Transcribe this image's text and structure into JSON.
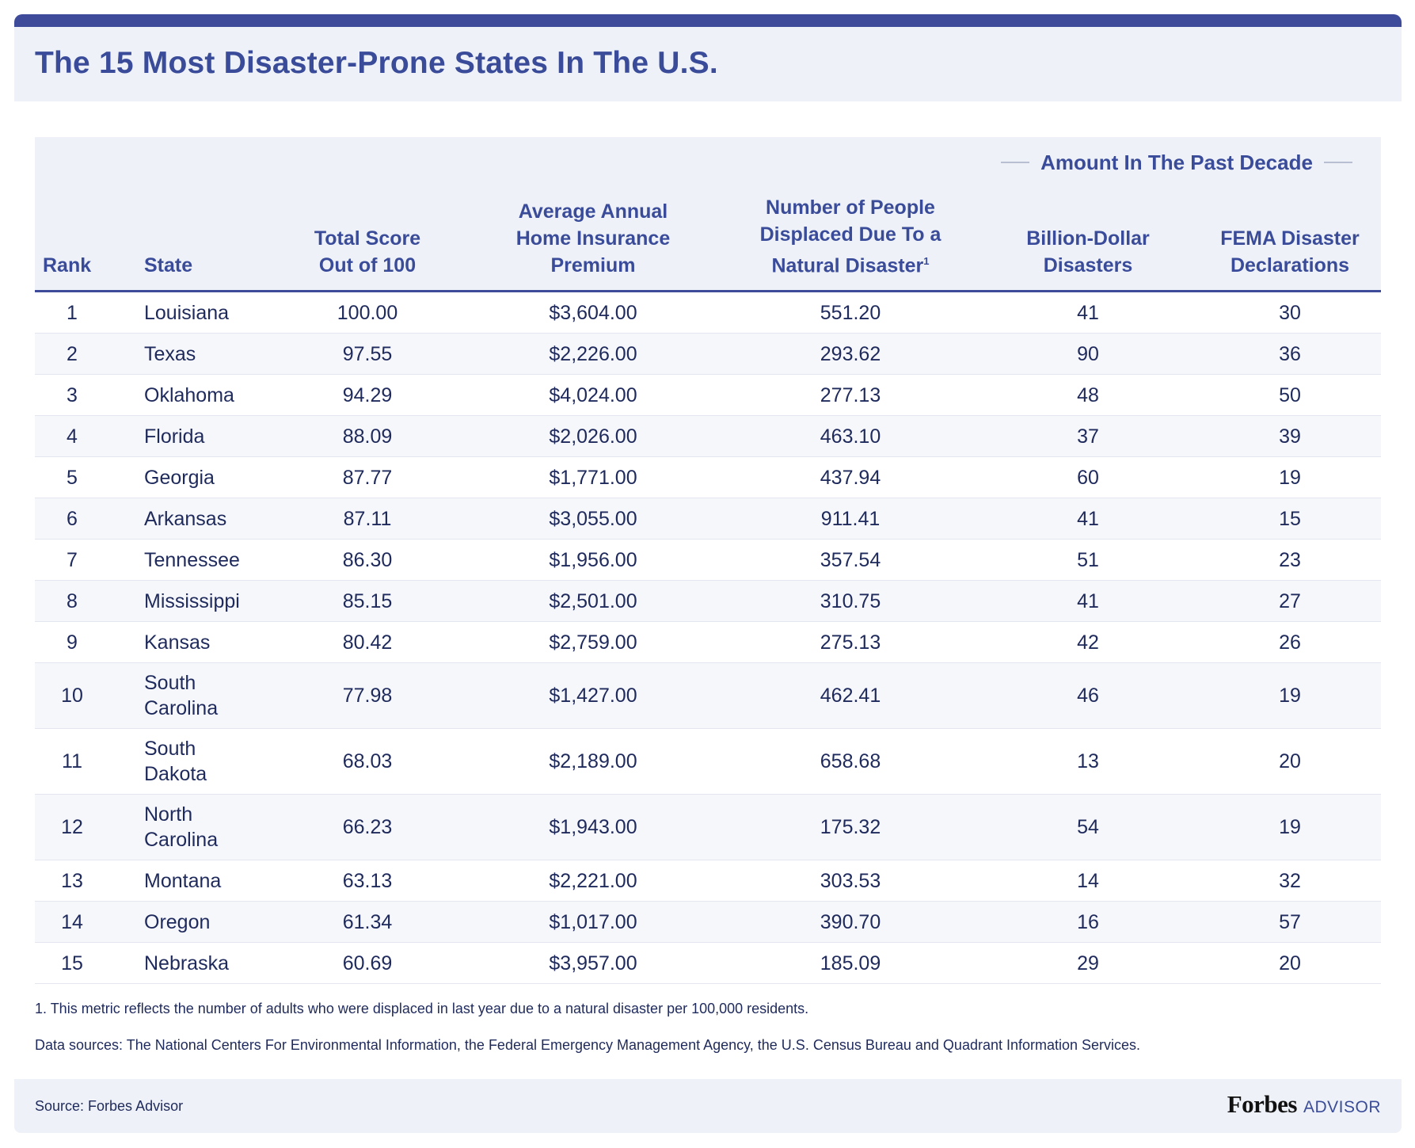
{
  "chart_data": {
    "type": "table",
    "title": "The 15 Most Disaster-Prone States In The U.S.",
    "group_header": "Amount In The Past Decade",
    "columns": [
      "Rank",
      "State",
      "Total Score Out of 100",
      "Average Annual Home Insurance Premium",
      "Number of People Displaced Due To a Natural Disaster",
      "Billion-Dollar Disasters",
      "FEMA Disaster Declarations"
    ],
    "header_lines": {
      "rank": [
        "Rank"
      ],
      "state": [
        "State"
      ],
      "score": [
        "Total Score",
        "Out of 100"
      ],
      "premium": [
        "Average Annual",
        "Home Insurance",
        "Premium"
      ],
      "displaced": [
        "Number of People",
        "Displaced Due To a",
        "Natural Disaster"
      ],
      "displaced_sup": "1",
      "billion": [
        "Billion-Dollar",
        "Disasters"
      ],
      "fema": [
        "FEMA Disaster",
        "Declarations"
      ]
    },
    "rows": [
      {
        "rank": "1",
        "state": [
          "Louisiana"
        ],
        "score": "100.00",
        "premium": "$3,604.00",
        "displaced": "551.20",
        "billion": "41",
        "fema": "30"
      },
      {
        "rank": "2",
        "state": [
          "Texas"
        ],
        "score": "97.55",
        "premium": "$2,226.00",
        "displaced": "293.62",
        "billion": "90",
        "fema": "36"
      },
      {
        "rank": "3",
        "state": [
          "Oklahoma"
        ],
        "score": "94.29",
        "premium": "$4,024.00",
        "displaced": "277.13",
        "billion": "48",
        "fema": "50"
      },
      {
        "rank": "4",
        "state": [
          "Florida"
        ],
        "score": "88.09",
        "premium": "$2,026.00",
        "displaced": "463.10",
        "billion": "37",
        "fema": "39"
      },
      {
        "rank": "5",
        "state": [
          "Georgia"
        ],
        "score": "87.77",
        "premium": "$1,771.00",
        "displaced": "437.94",
        "billion": "60",
        "fema": "19"
      },
      {
        "rank": "6",
        "state": [
          "Arkansas"
        ],
        "score": "87.11",
        "premium": "$3,055.00",
        "displaced": "911.41",
        "billion": "41",
        "fema": "15"
      },
      {
        "rank": "7",
        "state": [
          "Tennessee"
        ],
        "score": "86.30",
        "premium": "$1,956.00",
        "displaced": "357.54",
        "billion": "51",
        "fema": "23"
      },
      {
        "rank": "8",
        "state": [
          "Mississippi"
        ],
        "score": "85.15",
        "premium": "$2,501.00",
        "displaced": "310.75",
        "billion": "41",
        "fema": "27"
      },
      {
        "rank": "9",
        "state": [
          "Kansas"
        ],
        "score": "80.42",
        "premium": "$2,759.00",
        "displaced": "275.13",
        "billion": "42",
        "fema": "26"
      },
      {
        "rank": "10",
        "state": [
          "South",
          "Carolina"
        ],
        "score": "77.98",
        "premium": "$1,427.00",
        "displaced": "462.41",
        "billion": "46",
        "fema": "19"
      },
      {
        "rank": "11",
        "state": [
          "South",
          "Dakota"
        ],
        "score": "68.03",
        "premium": "$2,189.00",
        "displaced": "658.68",
        "billion": "13",
        "fema": "20"
      },
      {
        "rank": "12",
        "state": [
          "North",
          "Carolina"
        ],
        "score": "66.23",
        "premium": "$1,943.00",
        "displaced": "175.32",
        "billion": "54",
        "fema": "19"
      },
      {
        "rank": "13",
        "state": [
          "Montana"
        ],
        "score": "63.13",
        "premium": "$2,221.00",
        "displaced": "303.53",
        "billion": "14",
        "fema": "32"
      },
      {
        "rank": "14",
        "state": [
          "Oregon"
        ],
        "score": "61.34",
        "premium": "$1,017.00",
        "displaced": "390.70",
        "billion": "16",
        "fema": "57"
      },
      {
        "rank": "15",
        "state": [
          "Nebraska"
        ],
        "score": "60.69",
        "premium": "$3,957.00",
        "displaced": "185.09",
        "billion": "29",
        "fema": "20"
      }
    ]
  },
  "footnotes": {
    "note1": "1. This metric reflects the number of adults who were displaced in last year due to a natural disaster per 100,000 residents.",
    "sources": "Data sources: The National Centers For Environmental Information, the Federal Emergency Management Agency, the U.S. Census Bureau and Quadrant Information Services."
  },
  "footer": {
    "source": "Source: Forbes Advisor",
    "brand_name": "Forbes",
    "brand_suffix": "ADVISOR"
  },
  "colors": {
    "accent": "#3e4b9a",
    "header_bg": "#eef2f8",
    "text": "#1f2a5c",
    "alt_row": "#f6f7fb"
  }
}
